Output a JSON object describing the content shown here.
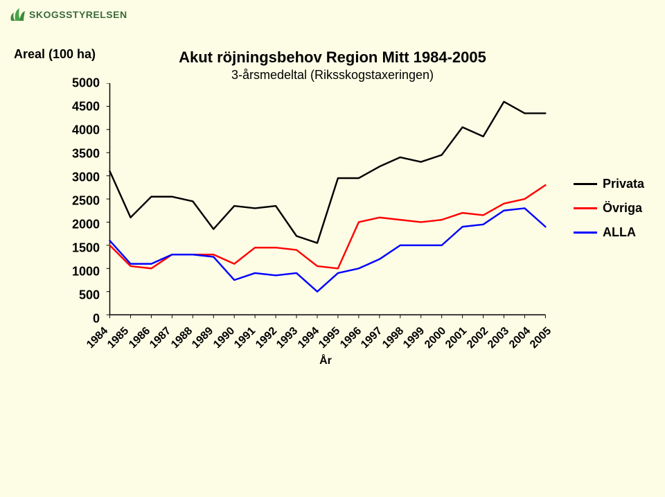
{
  "logo": {
    "text": "SKOGSSTYRELSEN"
  },
  "chart": {
    "type": "line",
    "title_line1": "Akut röjningsbehov  Region Mitt 1984-2005",
    "title_line2": "3-årsmedeltal (Riksskogstaxeringen)",
    "ylabel": "Areal (100 ha)",
    "xlabel": "År",
    "background_color": "#fdfde6",
    "axis_color": "#000000",
    "ylim": [
      0,
      5000
    ],
    "ytick_step": 500,
    "yticks": [
      0,
      500,
      1000,
      1500,
      2000,
      2500,
      3000,
      3500,
      4000,
      4500,
      5000
    ],
    "years": [
      1984,
      1985,
      1986,
      1987,
      1988,
      1989,
      1990,
      1991,
      1992,
      1993,
      1994,
      1995,
      1996,
      1997,
      1998,
      1999,
      2000,
      2001,
      2002,
      2003,
      2004,
      2005
    ],
    "series": [
      {
        "name": "Privata",
        "color": "#000000",
        "width": 2.5,
        "values": [
          3100,
          2100,
          2550,
          2550,
          2450,
          1850,
          2350,
          2300,
          2350,
          1700,
          1550,
          2950,
          2950,
          3200,
          3400,
          3300,
          3450,
          4050,
          3850,
          4600,
          4350,
          4350
        ]
      },
      {
        "name": "Övriga",
        "color": "#ff0000",
        "width": 2.5,
        "values": [
          1500,
          1050,
          1000,
          1300,
          1300,
          1300,
          1100,
          1450,
          1450,
          1400,
          1050,
          1000,
          2000,
          2100,
          2050,
          2000,
          2050,
          2200,
          2150,
          2400,
          2500,
          2800
        ]
      },
      {
        "name": "ALLA",
        "color": "#0000ff",
        "width": 2.5,
        "values": [
          1600,
          1100,
          1100,
          1300,
          1300,
          1250,
          750,
          900,
          850,
          900,
          500,
          900,
          1000,
          1200,
          1500,
          1500,
          1500,
          1900,
          1950,
          2250,
          2300,
          1900
        ]
      }
    ],
    "title_fontsize": 22,
    "subtitle_fontsize": 18,
    "label_fontsize": 18,
    "tick_fontsize": 18
  }
}
